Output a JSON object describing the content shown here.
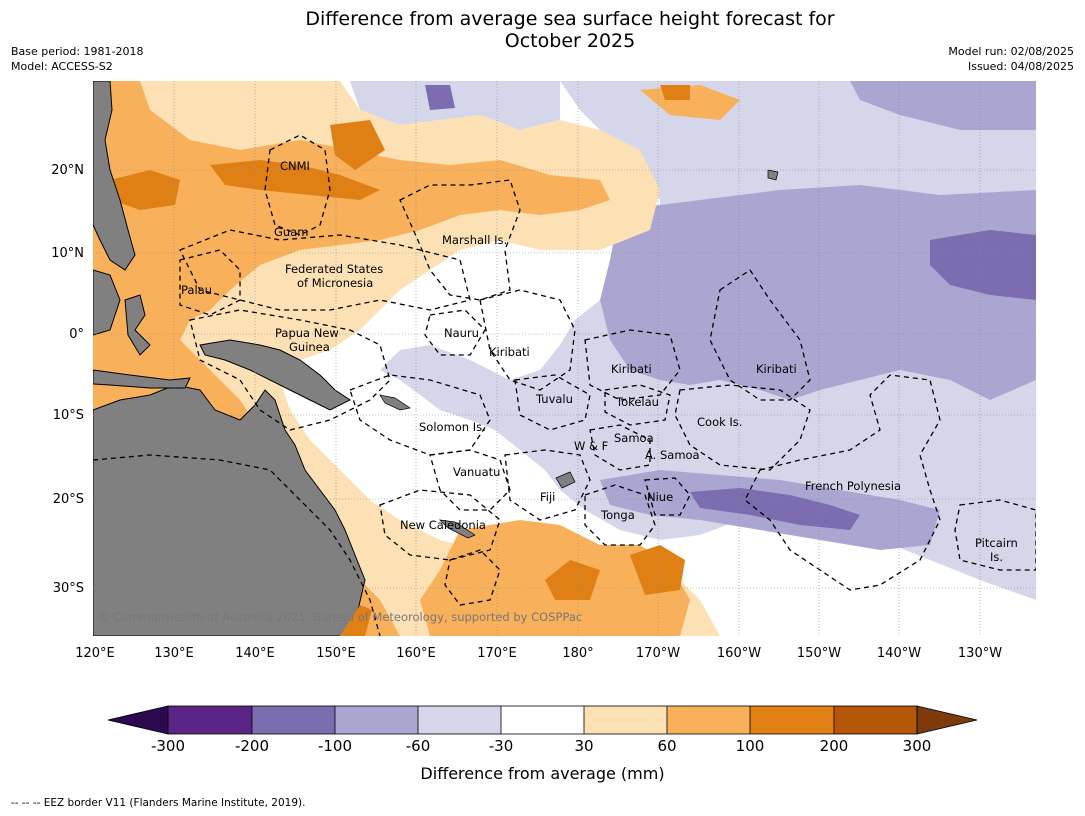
{
  "header": {
    "title_line1": "Difference from average sea surface height forecast for",
    "title_line2": "October 2025",
    "base_period": "Base period: 1981-2018",
    "model": "Model: ACCESS-S2",
    "model_run": "Model run: 02/08/2025",
    "issued": "Issued: 04/08/2025"
  },
  "map": {
    "lon_ticks": [
      "120°E",
      "130°E",
      "140°E",
      "150°E",
      "160°E",
      "170°E",
      "180°",
      "170°W",
      "160°W",
      "150°W",
      "140°W",
      "130°W"
    ],
    "lat_ticks": [
      "20°N",
      "10°N",
      "0°",
      "10°S",
      "20°S",
      "30°S"
    ],
    "copyright": "© Commonwealth of Australia 2025, Bureau of Meteorology, supported by COSPPac",
    "places": {
      "cnmi": "CNMI",
      "guam": "Guam",
      "marshall": "Marshall Is.",
      "fsm1": "Federated States",
      "fsm2": "of Micronesia",
      "palau": "Palau",
      "png1": "Papua New",
      "png2": "Guinea",
      "nauru": "Nauru",
      "kiribati_w": "Kiribati",
      "kiribati_c": "Kiribati",
      "kiribati_e": "Kiribati",
      "tuvalu": "Tuvalu",
      "tokelau": "Tokelau",
      "cook": "Cook Is.",
      "solomon": "Solomon Is.",
      "wf": "W & F",
      "samoa": "Samoa",
      "asamoa": "A. Samoa",
      "vanuatu": "Vanuatu",
      "fiji": "Fiji",
      "niue": "Niue",
      "tonga": "Tonga",
      "fp": "French Polynesia",
      "newcal": "New Caledonia",
      "pitcairn1": "Pitcairn",
      "pitcairn2": "Is."
    }
  },
  "colorbar": {
    "labels": [
      "-300",
      "-200",
      "-100",
      "-60",
      "-30",
      "30",
      "60",
      "100",
      "200",
      "300"
    ],
    "colors": [
      "#2d0a4e",
      "#5a2489",
      "#7b6daf",
      "#aba6d1",
      "#d6d6ea",
      "#ffffff",
      "#fee0b5",
      "#f8b05a",
      "#e07f14",
      "#b45707",
      "#7d3a0a"
    ],
    "label": "Difference from average (mm)"
  },
  "footer": "-- -- -- EEZ border V11 (Flanders Marine Institute, 2019)."
}
